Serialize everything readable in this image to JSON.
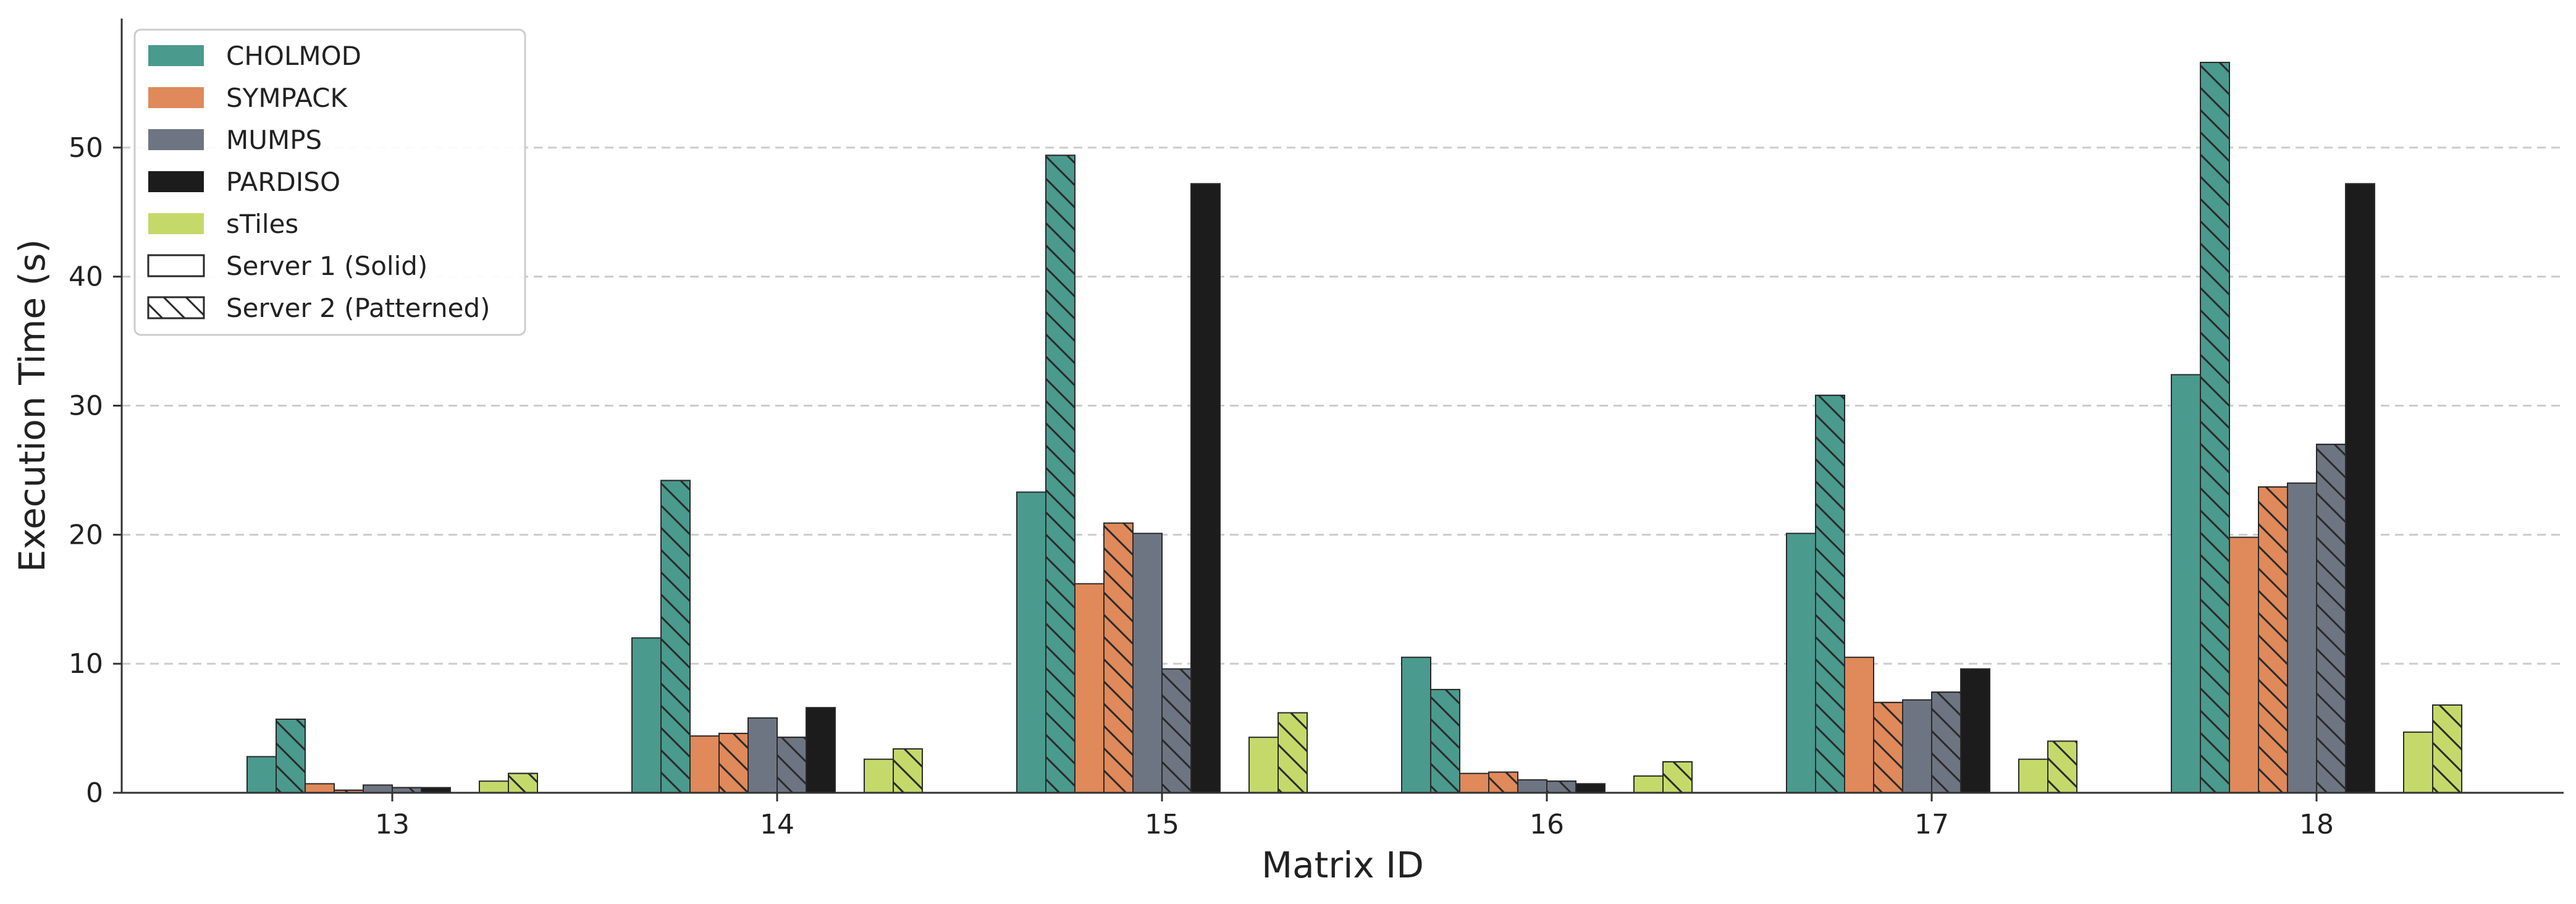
{
  "chart_data": {
    "type": "bar",
    "xlabel": "Matrix ID",
    "ylabel": "Execution Time (s)",
    "ylim": [
      0,
      60
    ],
    "yticks": [
      0,
      10,
      20,
      30,
      40,
      50
    ],
    "grid": "horizontal dashed",
    "legend_position": "top-left",
    "categories": [
      "13",
      "14",
      "15",
      "16",
      "17",
      "18"
    ],
    "series": [
      {
        "name": "CHOLMOD",
        "server": 1,
        "color": "#4a9a8e",
        "values": [
          2.8,
          12.0,
          23.3,
          10.5,
          20.1,
          32.4
        ]
      },
      {
        "name": "CHOLMOD",
        "server": 2,
        "color": "#4a9a8e",
        "values": [
          5.7,
          24.2,
          49.4,
          8.0,
          30.8,
          56.6
        ]
      },
      {
        "name": "SYMPACK",
        "server": 1,
        "color": "#e0895a",
        "values": [
          0.7,
          4.4,
          16.2,
          1.5,
          10.5,
          19.8
        ]
      },
      {
        "name": "SYMPACK",
        "server": 2,
        "color": "#e0895a",
        "values": [
          0.2,
          4.6,
          20.9,
          1.6,
          7.0,
          23.7
        ]
      },
      {
        "name": "MUMPS",
        "server": 1,
        "color": "#6e7582",
        "values": [
          0.6,
          5.8,
          20.1,
          1.0,
          7.2,
          24.0
        ]
      },
      {
        "name": "MUMPS",
        "server": 2,
        "color": "#6e7582",
        "values": [
          0.4,
          4.3,
          9.6,
          0.9,
          7.8,
          27.0
        ]
      },
      {
        "name": "PARDISO",
        "server": 1,
        "color": "#1c1c1c",
        "values": [
          0.4,
          6.6,
          47.2,
          0.7,
          9.6,
          47.2
        ]
      },
      {
        "name": "sTiles",
        "server": 1,
        "color": "#c5d96b",
        "values": [
          0.9,
          2.6,
          4.3,
          1.3,
          2.6,
          4.7
        ]
      },
      {
        "name": "sTiles",
        "server": 2,
        "color": "#c5d96b",
        "values": [
          1.5,
          3.4,
          6.2,
          2.4,
          4.0,
          6.8
        ]
      }
    ],
    "legend": [
      {
        "label": "CHOLMOD",
        "color": "#4a9a8e",
        "pattern": "solid"
      },
      {
        "label": "SYMPACK",
        "color": "#e0895a",
        "pattern": "solid"
      },
      {
        "label": "MUMPS",
        "color": "#6e7582",
        "pattern": "solid"
      },
      {
        "label": "PARDISO",
        "color": "#1c1c1c",
        "pattern": "solid"
      },
      {
        "label": "sTiles",
        "color": "#c5d96b",
        "pattern": "solid"
      },
      {
        "label": "Server 1 (Solid)",
        "color": "#ffffff",
        "pattern": "solid"
      },
      {
        "label": "Server 2 (Patterned)",
        "color": "#ffffff",
        "pattern": "hatched"
      }
    ]
  }
}
